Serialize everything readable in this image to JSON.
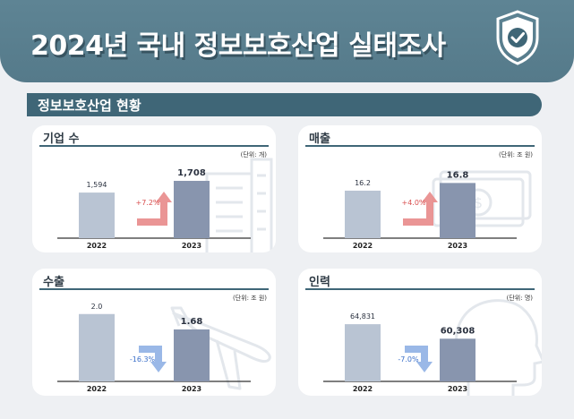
{
  "header": {
    "title": "2024년 국내 정보보호산업 실태조사"
  },
  "section": {
    "title": "정보보호산업 현황"
  },
  "colors": {
    "header": "#5a7e8f",
    "section_bar": "#3f6677",
    "bar_2022": "#b9c4d3",
    "bar_2023": "#8895ae",
    "increase": "#e88a8a",
    "decrease": "#8fb0e4",
    "increase_text": "#d94f4f",
    "decrease_text": "#3a6fc9"
  },
  "icons": {
    "header": "shield-check-icon",
    "companies": "building-icon",
    "sales": "money-icon",
    "exports": "airplane-icon",
    "workforce": "person-head-icon"
  },
  "chart_data": [
    {
      "type": "bar",
      "title": "기업 수",
      "unit": "(단위: 개)",
      "categories": [
        "2022",
        "2023"
      ],
      "values": [
        1594,
        1708
      ],
      "value_labels": [
        "1,594",
        "1,708"
      ],
      "change": "+7.2%",
      "direction": "up"
    },
    {
      "type": "bar",
      "title": "매출",
      "unit": "(단위: 조 원)",
      "categories": [
        "2022",
        "2023"
      ],
      "values": [
        16.2,
        16.8
      ],
      "value_labels": [
        "16.2",
        "16.8"
      ],
      "change": "+4.0%",
      "direction": "up"
    },
    {
      "type": "bar",
      "title": "수출",
      "unit": "(단위: 조 원)",
      "categories": [
        "2022",
        "2023"
      ],
      "values": [
        2.0,
        1.68
      ],
      "value_labels": [
        "2.0",
        "1.68"
      ],
      "change": "-16.3%",
      "direction": "down"
    },
    {
      "type": "bar",
      "title": "인력",
      "unit": "(단위: 명)",
      "categories": [
        "2022",
        "2023"
      ],
      "values": [
        64831,
        60308
      ],
      "value_labels": [
        "64,831",
        "60,308"
      ],
      "change": "-7.0%",
      "direction": "down"
    }
  ]
}
